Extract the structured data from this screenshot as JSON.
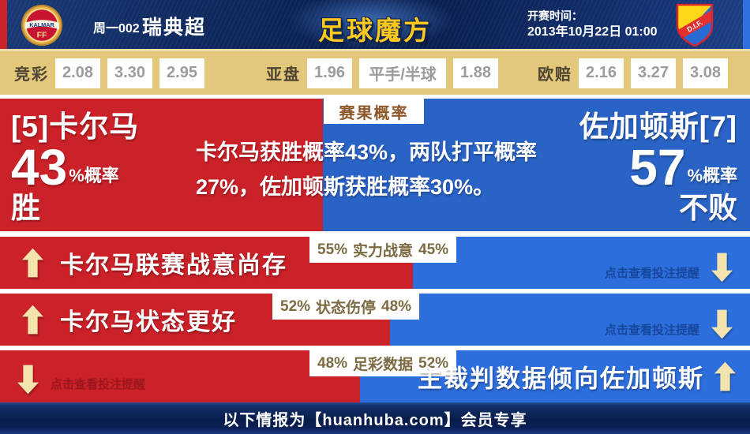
{
  "colors": {
    "red": "#cb2128",
    "panel_blue": "#2a63c6",
    "row_blue": "#2d6edd",
    "brand_gold": "#ffc91e",
    "odds_bar_bg": "#e3c77b",
    "arrow_cream": "#f3e3ad",
    "footer_navy": "#0a2054"
  },
  "header": {
    "match_code": "周一002",
    "league_name": "瑞典超",
    "brand_logo_text": "足球魔方",
    "kickoff_label": "开赛时间：",
    "kickoff_datetime": "2013年10月22日 01:00",
    "home_badge_text": "KALMAR",
    "home_badge_sub": "FF",
    "away_badge_text": "D.I.F."
  },
  "odds_bar": {
    "groups": [
      {
        "label": "竞彩",
        "values": [
          "2.08",
          "3.30",
          "2.95"
        ]
      },
      {
        "label": "亚盘",
        "values": [
          "1.96",
          "平手/半球",
          "1.88"
        ]
      },
      {
        "label": "欧赔",
        "values": [
          "2.16",
          "3.27",
          "3.08"
        ]
      }
    ]
  },
  "probability_panel": {
    "tag": "赛果概率",
    "summary": "卡尔马获胜概率43%，两队打平概率27%，佐加顿斯获胜概率30%。",
    "home": {
      "title": "[5]卡尔马",
      "percent": "43",
      "percent_suffix": "%概率",
      "outcome": "胜",
      "percent_value": 43
    },
    "away": {
      "title": "佐加顿斯[7]",
      "percent": "57",
      "percent_suffix": "%概率",
      "outcome": "不败",
      "percent_value": 57
    },
    "draw_percent_value": 27
  },
  "factors": [
    {
      "home_value": "55%",
      "name": "实力战意",
      "away_value": "45%",
      "split_percent": 55,
      "headline": "卡尔马联赛战意尚存",
      "headline_side": "home",
      "home_arrow": "up",
      "hint": "点击查看投注提醒",
      "hint_side": "away",
      "away_arrow": "down"
    },
    {
      "home_value": "52%",
      "name": "状态伤停",
      "away_value": "48%",
      "split_percent": 52,
      "headline": "卡尔马状态更好",
      "headline_side": "home",
      "home_arrow": "up",
      "hint": "点击查看投注提醒",
      "hint_side": "away",
      "away_arrow": "down"
    },
    {
      "home_value": "48%",
      "name": "足彩数据",
      "away_value": "52%",
      "split_percent": 48,
      "headline": "主裁判数据倾向佐加顿斯",
      "headline_side": "away",
      "away_arrow": "up",
      "hint": "点击查看投注提醒",
      "hint_side": "home",
      "home_arrow": "down"
    }
  ],
  "footer": {
    "notice": "以下情报为【huanhuba.com】会员专享"
  }
}
